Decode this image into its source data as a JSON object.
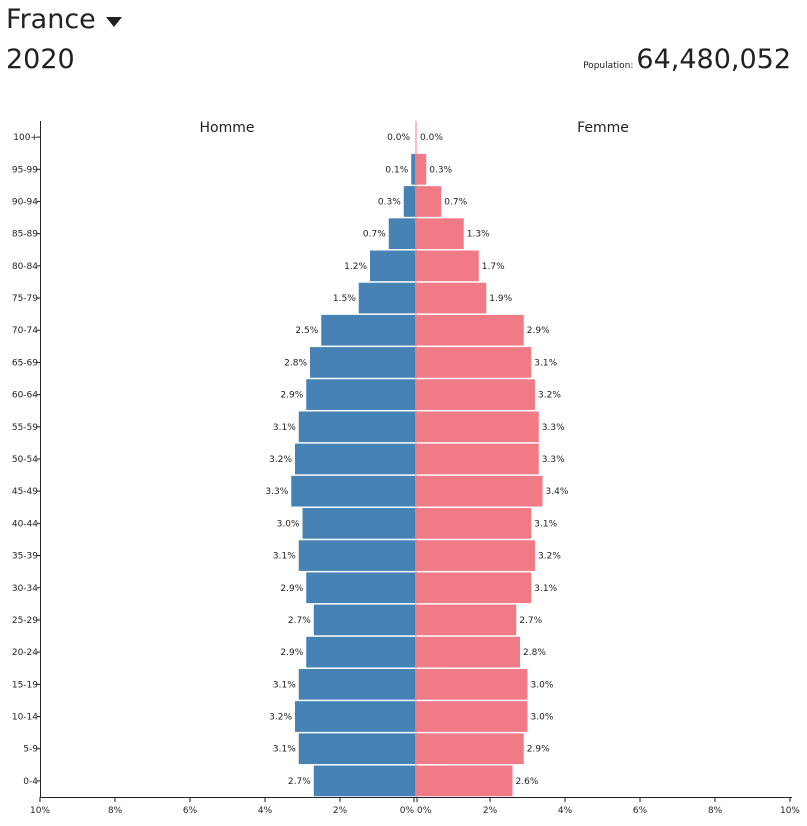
{
  "header": {
    "country": "France",
    "year": "2020",
    "population_label": "Population:",
    "population_value": "64,480,052"
  },
  "chart_data": {
    "type": "bar",
    "orientation": "horizontal-pyramid",
    "categories": [
      "100+",
      "95-99",
      "90-94",
      "85-89",
      "80-84",
      "75-79",
      "70-74",
      "65-69",
      "60-64",
      "55-59",
      "50-54",
      "45-49",
      "40-44",
      "35-39",
      "30-34",
      "25-29",
      "20-24",
      "15-19",
      "10-14",
      "5-9",
      "0-4"
    ],
    "series": [
      {
        "name": "Homme",
        "color": "#4682b4",
        "values": [
          0.0,
          0.1,
          0.3,
          0.7,
          1.2,
          1.5,
          2.5,
          2.8,
          2.9,
          3.1,
          3.2,
          3.3,
          3.0,
          3.1,
          2.9,
          2.7,
          2.9,
          3.1,
          3.2,
          3.1,
          2.7
        ],
        "labels": [
          "0.0%",
          "0.1%",
          "0.3%",
          "0.7%",
          "1.2%",
          "1.5%",
          "2.5%",
          "2.8%",
          "2.9%",
          "3.1%",
          "3.2%",
          "3.3%",
          "3.0%",
          "3.1%",
          "2.9%",
          "2.7%",
          "2.9%",
          "3.1%",
          "3.2%",
          "3.1%",
          "2.7%"
        ]
      },
      {
        "name": "Femme",
        "color": "#f07b87",
        "values": [
          0.0,
          0.3,
          0.7,
          1.3,
          1.7,
          1.9,
          2.9,
          3.1,
          3.2,
          3.3,
          3.3,
          3.4,
          3.1,
          3.2,
          3.1,
          2.7,
          2.8,
          3.0,
          3.0,
          2.9,
          2.6
        ],
        "labels": [
          "0.0%",
          "0.3%",
          "0.7%",
          "1.3%",
          "1.7%",
          "1.9%",
          "2.9%",
          "3.1%",
          "3.2%",
          "3.3%",
          "3.3%",
          "3.4%",
          "3.1%",
          "3.2%",
          "3.1%",
          "2.7%",
          "2.8%",
          "3.0%",
          "3.0%",
          "2.9%",
          "2.6%"
        ]
      }
    ],
    "xticks": [
      "10%",
      "8%",
      "6%",
      "4%",
      "2%",
      "0%",
      "0%",
      "2%",
      "4%",
      "6%",
      "8%",
      "10%"
    ],
    "xlim": [
      -10,
      10
    ],
    "grid": false
  }
}
